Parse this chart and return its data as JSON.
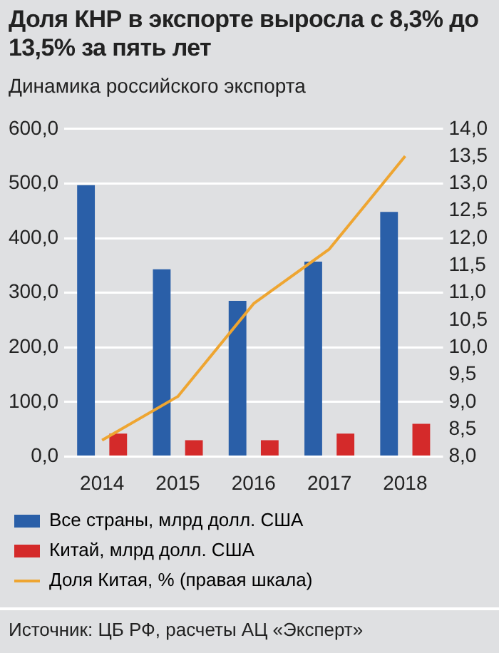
{
  "chart_data": {
    "type": "bar",
    "title": "Доля КНР в экспорте выросла с 8,3% до 13,5% за пять лет",
    "subtitle": "Динамика российского экспорта",
    "categories": [
      "2014",
      "2015",
      "2016",
      "2017",
      "2018"
    ],
    "series": [
      {
        "name": "Все страны, млрд долл. США",
        "color": "#2a5fa8",
        "values": [
          497,
          343,
          285,
          357,
          448
        ]
      },
      {
        "name": "Китай, млрд долл. США",
        "color": "#d42a2a",
        "values": [
          42,
          30,
          30,
          42,
          60
        ]
      },
      {
        "name": "Доля Китая, % (правая шкала)",
        "type": "line",
        "axis": "y2",
        "color": "#eea531",
        "values": [
          8.3,
          9.1,
          10.8,
          11.8,
          13.5
        ]
      }
    ],
    "ylim": [
      0,
      600
    ],
    "yticks": [
      {
        "value": 0,
        "label": "0,0"
      },
      {
        "value": 100,
        "label": "100,0"
      },
      {
        "value": 200,
        "label": "200,0"
      },
      {
        "value": 300,
        "label": "300,0"
      },
      {
        "value": 400,
        "label": "400,0"
      },
      {
        "value": 500,
        "label": "500,0"
      },
      {
        "value": 600,
        "label": "600,0"
      }
    ],
    "y2lim": [
      8,
      14
    ],
    "y2ticks": [
      {
        "value": 8,
        "label": "8,0"
      },
      {
        "value": 8.5,
        "label": "8,5"
      },
      {
        "value": 9,
        "label": "9,0"
      },
      {
        "value": 9.5,
        "label": "9,5"
      },
      {
        "value": 10,
        "label": "10,0"
      },
      {
        "value": 10.5,
        "label": "10,5"
      },
      {
        "value": 11,
        "label": "11,0"
      },
      {
        "value": 11.5,
        "label": "11,5"
      },
      {
        "value": 12,
        "label": "12,0"
      },
      {
        "value": 12.5,
        "label": "12,5"
      },
      {
        "value": 13,
        "label": "13,0"
      },
      {
        "value": 13.5,
        "label": "13,5"
      },
      {
        "value": 14,
        "label": "14,0"
      }
    ],
    "grid": "y",
    "legend": "bottom",
    "marker": "none",
    "annotations": [
      "Источник: ЦБ РФ, расчеты АЦ «Эксперт»"
    ]
  }
}
